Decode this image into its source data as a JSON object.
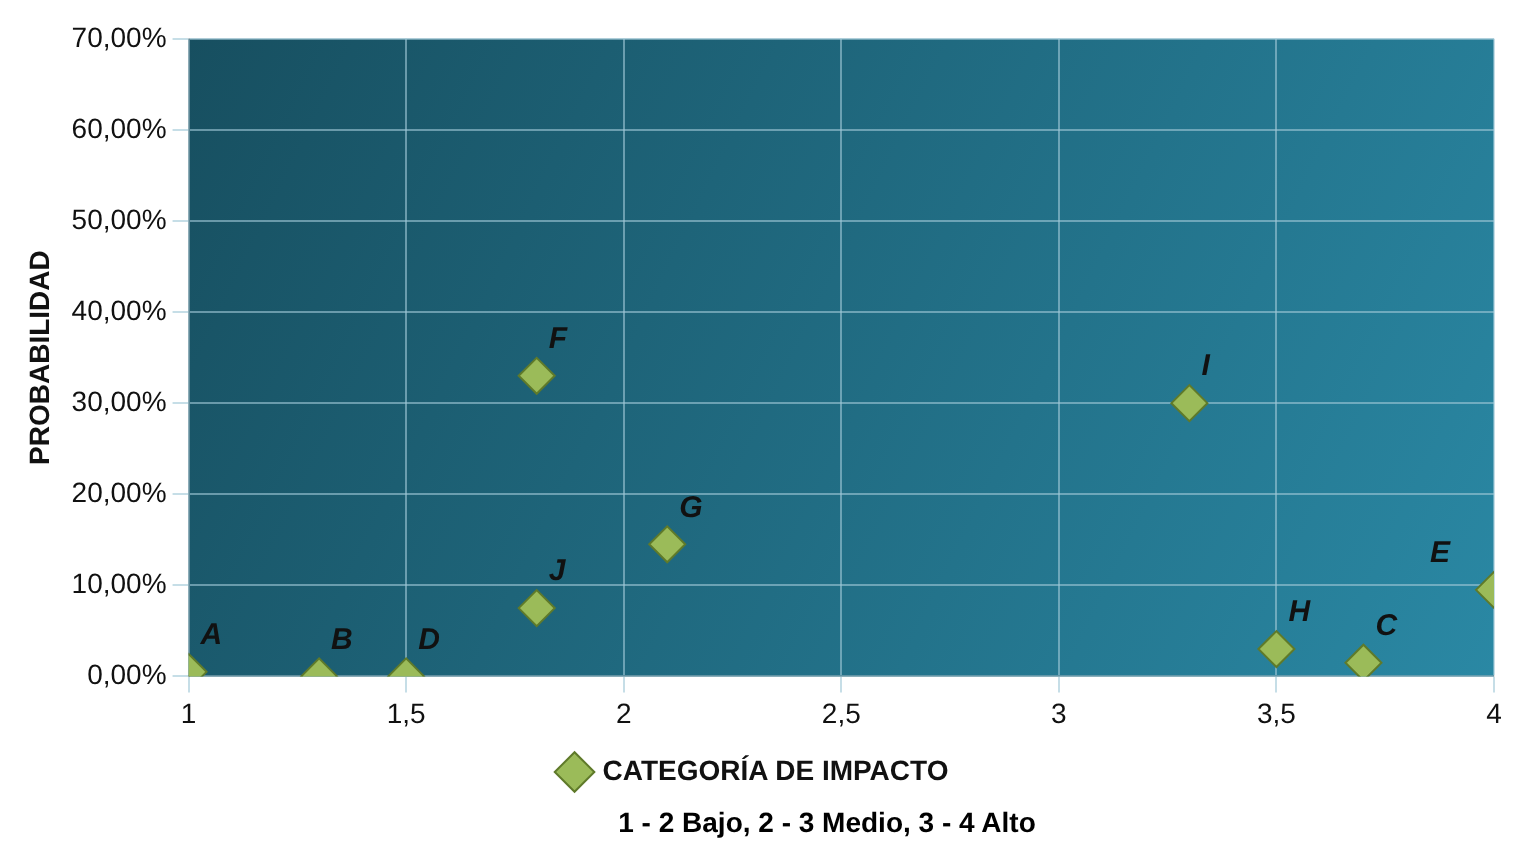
{
  "chart_data": {
    "type": "scatter",
    "ylabel": "PROBABILIDAD",
    "xlim": [
      1,
      4
    ],
    "xticks": [
      1,
      {
        "value": 1.5,
        "label": "1,5"
      },
      2,
      {
        "value": 2.5,
        "label": "2,5"
      },
      3,
      {
        "value": 3.5,
        "label": "3,5"
      },
      4
    ],
    "ylim": [
      0,
      70
    ],
    "yticks": [
      {
        "value": 0,
        "label": "0,00%"
      },
      {
        "value": 10,
        "label": "10,00%"
      },
      {
        "value": 20,
        "label": "20,00%"
      },
      {
        "value": 30,
        "label": "30,00%"
      },
      {
        "value": 40,
        "label": "40,00%"
      },
      {
        "value": 50,
        "label": "50,00%"
      },
      {
        "value": 60,
        "label": "60,00%"
      },
      {
        "value": 70,
        "label": "70,00%"
      }
    ],
    "series": [
      {
        "name": "CATEGORÍA DE IMPACTO",
        "color": "#9bbb59",
        "x": [
          1,
          1.3,
          1.5,
          1.8,
          1.8,
          2.1,
          3.3,
          3.5,
          3.7,
          4
        ],
        "values": [
          0.5,
          0,
          0,
          33,
          7.5,
          14.5,
          30,
          3,
          1.5,
          9.5
        ]
      }
    ],
    "marker": "diamond",
    "grid": true,
    "legend": "bottom",
    "annotations": [
      {
        "text": "A",
        "x": 1,
        "y": 0.5
      },
      {
        "text": "B",
        "x": 1.3,
        "y": 0
      },
      {
        "text": "D",
        "x": 1.5,
        "y": 0
      },
      {
        "text": "F",
        "x": 1.8,
        "y": 33
      },
      {
        "text": "J",
        "x": 1.8,
        "y": 7.5
      },
      {
        "text": "G",
        "x": 2.1,
        "y": 14.5
      },
      {
        "text": "I",
        "x": 3.3,
        "y": 30
      },
      {
        "text": "H",
        "x": 3.5,
        "y": 3
      },
      {
        "text": "C",
        "x": 3.7,
        "y": 1.5
      },
      {
        "text": "E",
        "x": 4,
        "y": 9.5
      },
      "1 - 2 Bajo, 2 - 3 Medio, 3 - 4 Alto"
    ]
  }
}
